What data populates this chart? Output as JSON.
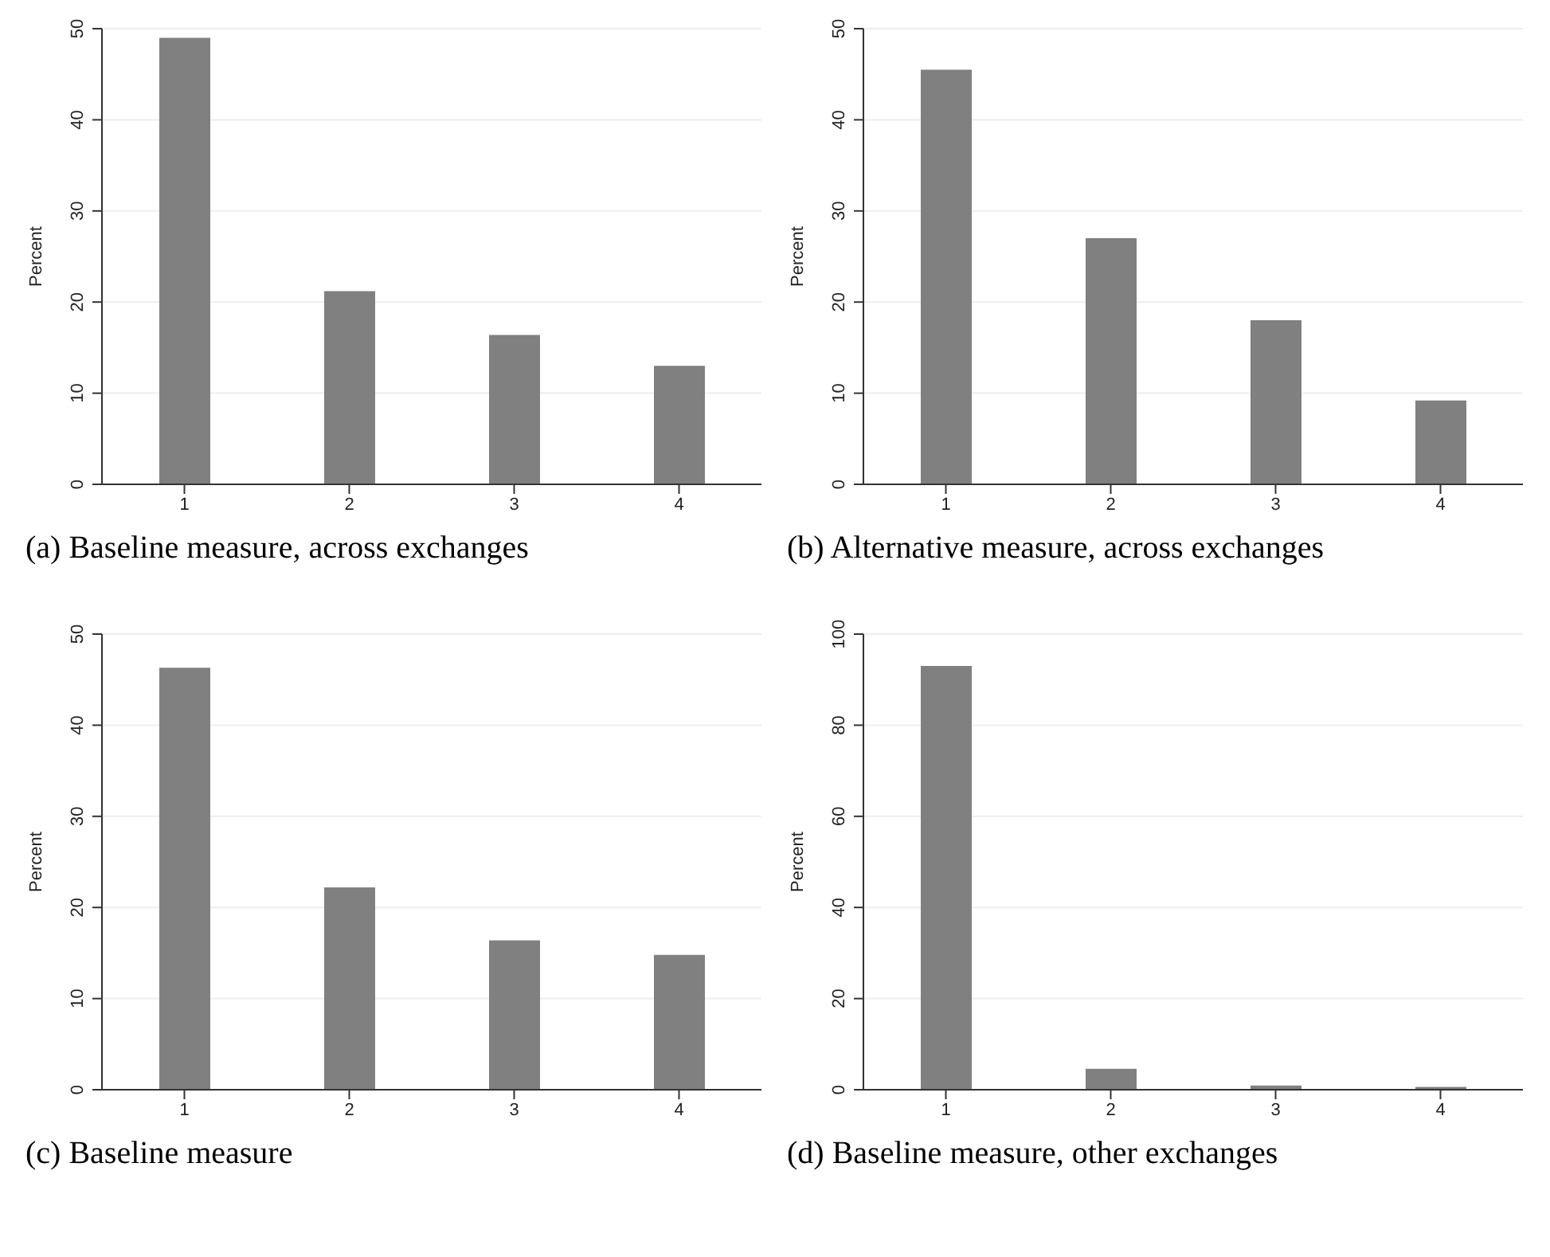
{
  "chart_data": [
    {
      "type": "bar",
      "title": "(a) Baseline measure, across exchanges",
      "ylabel": "Percent",
      "categories": [
        "1",
        "2",
        "3",
        "4"
      ],
      "values": [
        49,
        21.2,
        16.4,
        13
      ],
      "color": "#808080",
      "ylim": [
        0,
        50
      ],
      "yticks": [
        0,
        10,
        20,
        30,
        40,
        50
      ],
      "grid": "y"
    },
    {
      "type": "bar",
      "title": "(b) Alternative measure, across exchanges",
      "ylabel": "Percent",
      "categories": [
        "1",
        "2",
        "3",
        "4"
      ],
      "values": [
        45.5,
        27,
        18,
        9.2
      ],
      "color": "#808080",
      "ylim": [
        0,
        50
      ],
      "yticks": [
        0,
        10,
        20,
        30,
        40,
        50
      ],
      "grid": "y"
    },
    {
      "type": "bar",
      "title": "(c) Baseline measure",
      "ylabel": "Percent",
      "categories": [
        "1",
        "2",
        "3",
        "4"
      ],
      "values": [
        46.3,
        22.2,
        16.4,
        14.8
      ],
      "color": "#808080",
      "ylim": [
        0,
        50
      ],
      "yticks": [
        0,
        10,
        20,
        30,
        40,
        50
      ],
      "grid": "y"
    },
    {
      "type": "bar",
      "title": "(d) Baseline measure, other exchanges",
      "ylabel": "Percent",
      "categories": [
        "1",
        "2",
        "3",
        "4"
      ],
      "values": [
        93,
        4.6,
        0.9,
        0.6
      ],
      "color": "#808080",
      "ylim": [
        0,
        100
      ],
      "yticks": [
        0,
        20,
        40,
        60,
        80,
        100
      ],
      "grid": "y"
    }
  ]
}
